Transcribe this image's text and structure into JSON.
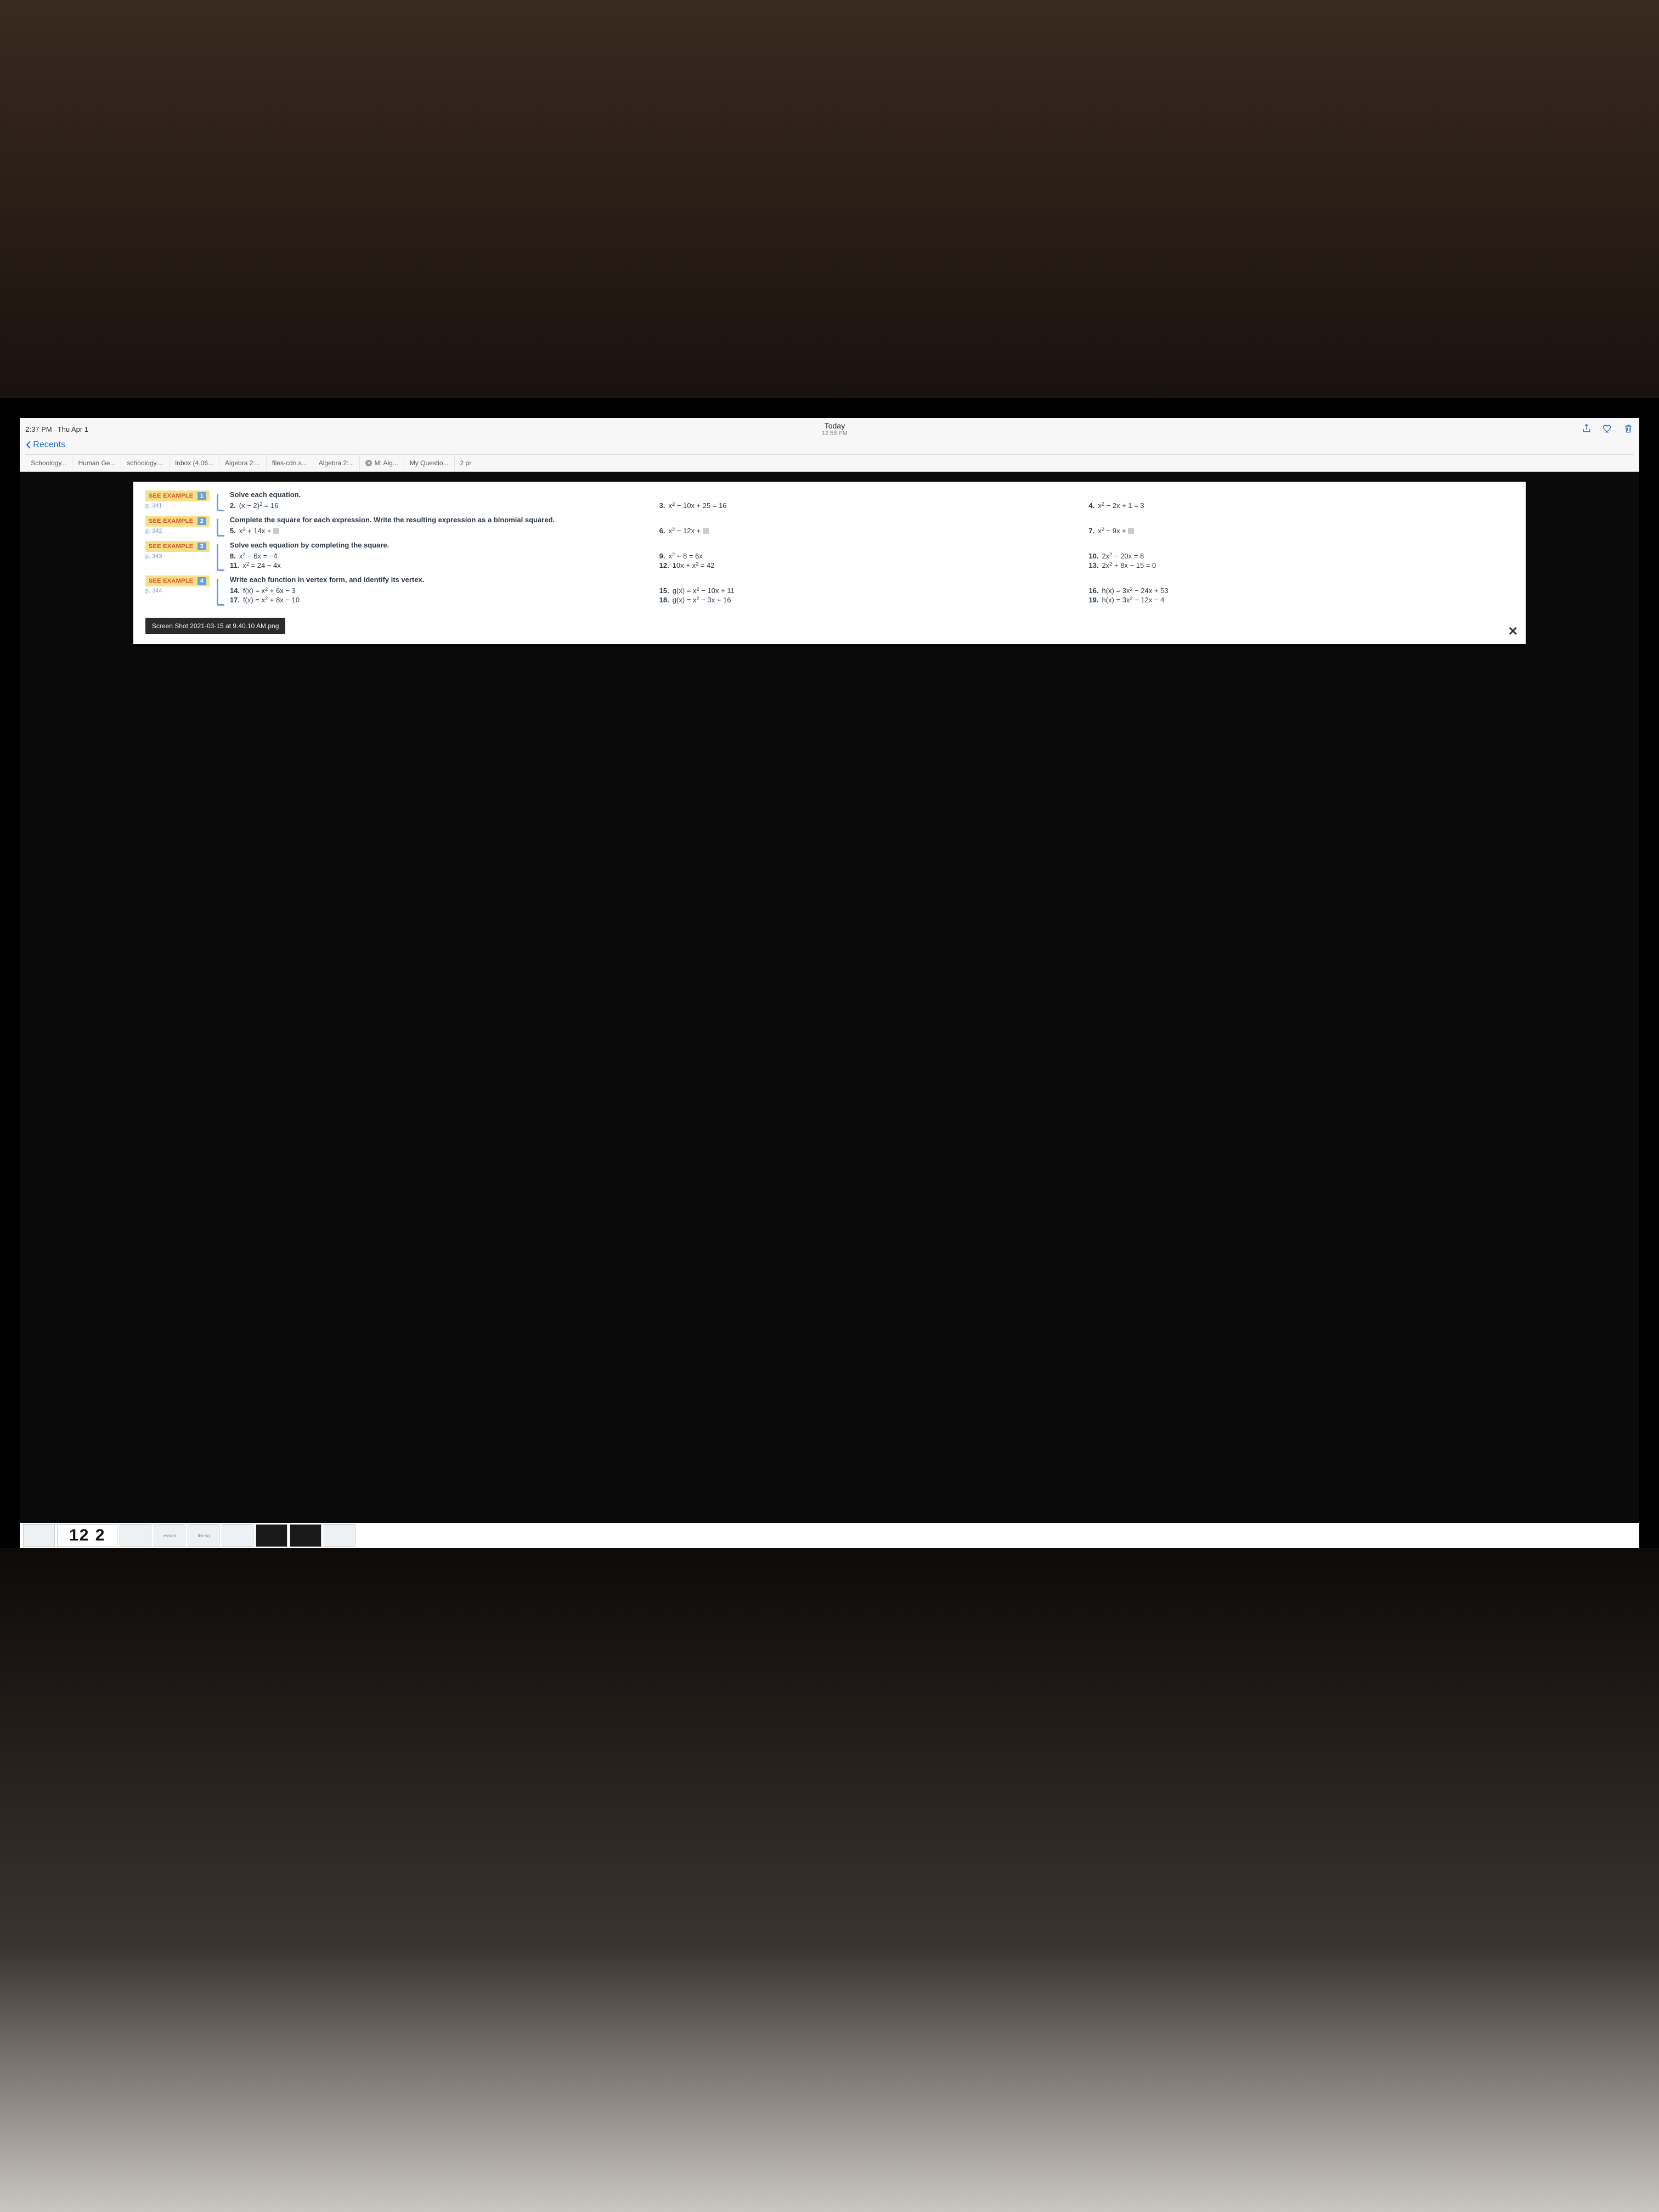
{
  "status": {
    "time": "2:37 PM",
    "date": "Thu Apr 1",
    "center_title": "Today",
    "center_subtitle": "12:55 PM"
  },
  "back_label": "Recents",
  "tabs": [
    "Schoology...",
    "Human Ge...",
    "schoology....",
    "Inbox (4,06...",
    "Algebra 2:...",
    "files-cdn.s...",
    "Algebra 2:...",
    "M: Alg...",
    "My Questio...",
    "2 pr"
  ],
  "close_tab_index": 7,
  "examples": [
    {
      "label": "SEE EXAMPLE",
      "num": "1",
      "page": "p. 341",
      "instruction": "Solve each equation.",
      "rows": [
        [
          {
            "n": "2.",
            "t": "(x − 2)<sup>2</sup> = 16"
          },
          {
            "n": "3.",
            "t": "x<sup>2</sup> − 10x + 25 = 16"
          },
          {
            "n": "4.",
            "t": "x<sup>2</sup> − 2x + 1 = 3"
          }
        ]
      ]
    },
    {
      "label": "SEE EXAMPLE",
      "num": "2",
      "page": "p. 342",
      "instruction": "Complete the square for each expression. Write the resulting expression as a binomial squared.",
      "rows": [
        [
          {
            "n": "5.",
            "t": "x<sup>2</sup> + 14x + <span class=\"blank\"></span>"
          },
          {
            "n": "6.",
            "t": "x<sup>2</sup> − 12x + <span class=\"blank\"></span>"
          },
          {
            "n": "7.",
            "t": "x<sup>2</sup> − 9x + <span class=\"blank\"></span>"
          }
        ]
      ]
    },
    {
      "label": "SEE EXAMPLE",
      "num": "3",
      "page": "p. 343",
      "instruction": "Solve each equation by completing the square.",
      "rows": [
        [
          {
            "n": "8.",
            "t": "x<sup>2</sup> − 6x = −4"
          },
          {
            "n": "9.",
            "t": "x<sup>2</sup> + 8 = 6x"
          },
          {
            "n": "10.",
            "t": "2x<sup>2</sup> − 20x = 8"
          }
        ],
        [
          {
            "n": "11.",
            "t": "x<sup>2</sup> = 24 − 4x"
          },
          {
            "n": "12.",
            "t": "10x + x<sup>2</sup> = 42"
          },
          {
            "n": "13.",
            "t": "2x<sup>2</sup> + 8x − 15 = 0"
          }
        ]
      ]
    },
    {
      "label": "SEE EXAMPLE",
      "num": "4",
      "page": "p. 344",
      "instruction": "Write each function in vertex form, and identify its vertex.",
      "rows": [
        [
          {
            "n": "14.",
            "t": "f(x) = x<sup>2</sup> + 6x − 3"
          },
          {
            "n": "15.",
            "t": "g(x) = x<sup>2</sup> − 10x + 11"
          },
          {
            "n": "16.",
            "t": "h(x) = 3x<sup>2</sup> − 24x + 53"
          }
        ],
        [
          {
            "n": "17.",
            "t": "f(x) = x<sup>2</sup> + 8x − 10"
          },
          {
            "n": "18.",
            "t": "g(x) = x<sup>2</sup> − 3x + 16"
          },
          {
            "n": "19.",
            "t": "h(x) = 3x<sup>2</sup> − 12x − 4"
          }
        ]
      ]
    }
  ],
  "tooltip": "Screen Shot 2021-03-15 at 9.40.10 AM.png",
  "big_thumb": "12 2",
  "colors": {
    "accent_blue": "#1a6fe0",
    "see_example_bg": "#f7e08a",
    "see_example_text": "#d94f2a",
    "num_badge_bg": "#6aa0d8",
    "bracket": "#6aa0d8",
    "page_text": "#2f3a47",
    "tooltip_bg": "#2b2b2b"
  }
}
